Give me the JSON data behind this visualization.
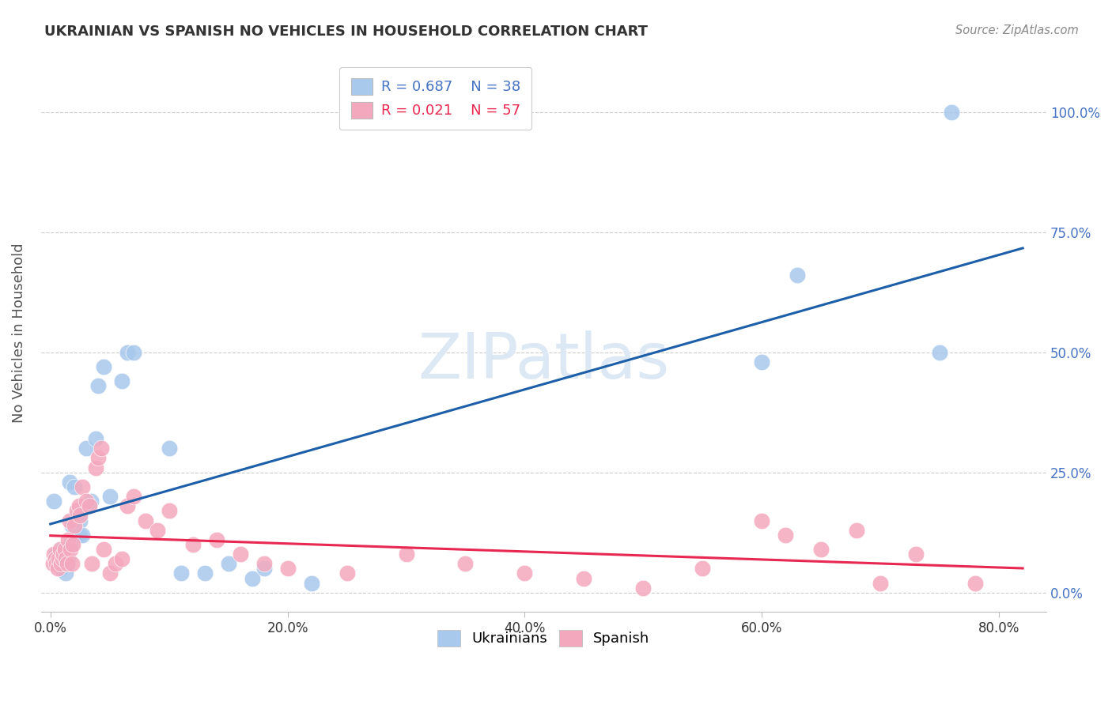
{
  "title": "UKRAINIAN VS SPANISH NO VEHICLES IN HOUSEHOLD CORRELATION CHART",
  "source": "Source: ZipAtlas.com",
  "ylabel": "No Vehicles in Household",
  "xlim": [
    -0.008,
    0.84
  ],
  "ylim": [
    -0.04,
    1.12
  ],
  "x_ticks": [
    0.0,
    0.2,
    0.4,
    0.6,
    0.8
  ],
  "x_tick_labels": [
    "0.0%",
    "20.0%",
    "40.0%",
    "60.0%",
    "80.0%"
  ],
  "y_ticks": [
    0.0,
    0.25,
    0.5,
    0.75,
    1.0
  ],
  "y_tick_labels": [
    "0.0%",
    "25.0%",
    "50.0%",
    "75.0%",
    "100.0%"
  ],
  "ukrainian_R": 0.687,
  "ukrainian_N": 38,
  "spanish_R": 0.021,
  "spanish_N": 57,
  "ukrainian_dot_color": "#A8C8EC",
  "spanish_dot_color": "#F4A8BE",
  "ukrainian_line_color": "#1C5FA8",
  "spanish_line_color": "#E82850",
  "background_color": "#FFFFFF",
  "grid_color": "#CCCCCC",
  "title_color": "#333333",
  "source_color": "#888888",
  "watermark_color": "#DDE8F5",
  "right_tick_color": "#4472C4",
  "legend1_text_color_1": "#4472C4",
  "legend1_text_color_2": "#E82850",
  "ukr_x": [
    0.003,
    0.005,
    0.007,
    0.009,
    0.01,
    0.011,
    0.012,
    0.013,
    0.014,
    0.015,
    0.016,
    0.017,
    0.018,
    0.02,
    0.022,
    0.024,
    0.025,
    0.027,
    0.03,
    0.034,
    0.038,
    0.04,
    0.045,
    0.05,
    0.06,
    0.065,
    0.07,
    0.1,
    0.11,
    0.13,
    0.15,
    0.17,
    0.18,
    0.22,
    0.6,
    0.63,
    0.75,
    0.76
  ],
  "ukr_y": [
    0.19,
    0.08,
    0.07,
    0.05,
    0.09,
    0.07,
    0.08,
    0.04,
    0.06,
    0.07,
    0.23,
    0.1,
    0.14,
    0.22,
    0.16,
    0.12,
    0.15,
    0.12,
    0.3,
    0.19,
    0.32,
    0.43,
    0.47,
    0.2,
    0.44,
    0.5,
    0.5,
    0.3,
    0.04,
    0.04,
    0.06,
    0.03,
    0.05,
    0.02,
    0.48,
    0.66,
    0.5,
    1.0
  ],
  "sp_x": [
    0.002,
    0.003,
    0.004,
    0.005,
    0.006,
    0.007,
    0.008,
    0.009,
    0.01,
    0.011,
    0.012,
    0.013,
    0.014,
    0.015,
    0.016,
    0.017,
    0.018,
    0.019,
    0.02,
    0.022,
    0.024,
    0.025,
    0.027,
    0.03,
    0.033,
    0.035,
    0.038,
    0.04,
    0.043,
    0.045,
    0.05,
    0.055,
    0.06,
    0.065,
    0.07,
    0.08,
    0.09,
    0.1,
    0.12,
    0.14,
    0.16,
    0.18,
    0.2,
    0.25,
    0.3,
    0.35,
    0.4,
    0.45,
    0.5,
    0.55,
    0.6,
    0.62,
    0.65,
    0.68,
    0.7,
    0.73,
    0.78
  ],
  "sp_y": [
    0.06,
    0.08,
    0.07,
    0.06,
    0.05,
    0.07,
    0.09,
    0.06,
    0.07,
    0.08,
    0.09,
    0.07,
    0.06,
    0.11,
    0.15,
    0.09,
    0.06,
    0.1,
    0.14,
    0.17,
    0.18,
    0.16,
    0.22,
    0.19,
    0.18,
    0.06,
    0.26,
    0.28,
    0.3,
    0.09,
    0.04,
    0.06,
    0.07,
    0.18,
    0.2,
    0.15,
    0.13,
    0.17,
    0.1,
    0.11,
    0.08,
    0.06,
    0.05,
    0.04,
    0.08,
    0.06,
    0.04,
    0.03,
    0.01,
    0.05,
    0.15,
    0.12,
    0.09,
    0.13,
    0.02,
    0.08,
    0.02
  ]
}
